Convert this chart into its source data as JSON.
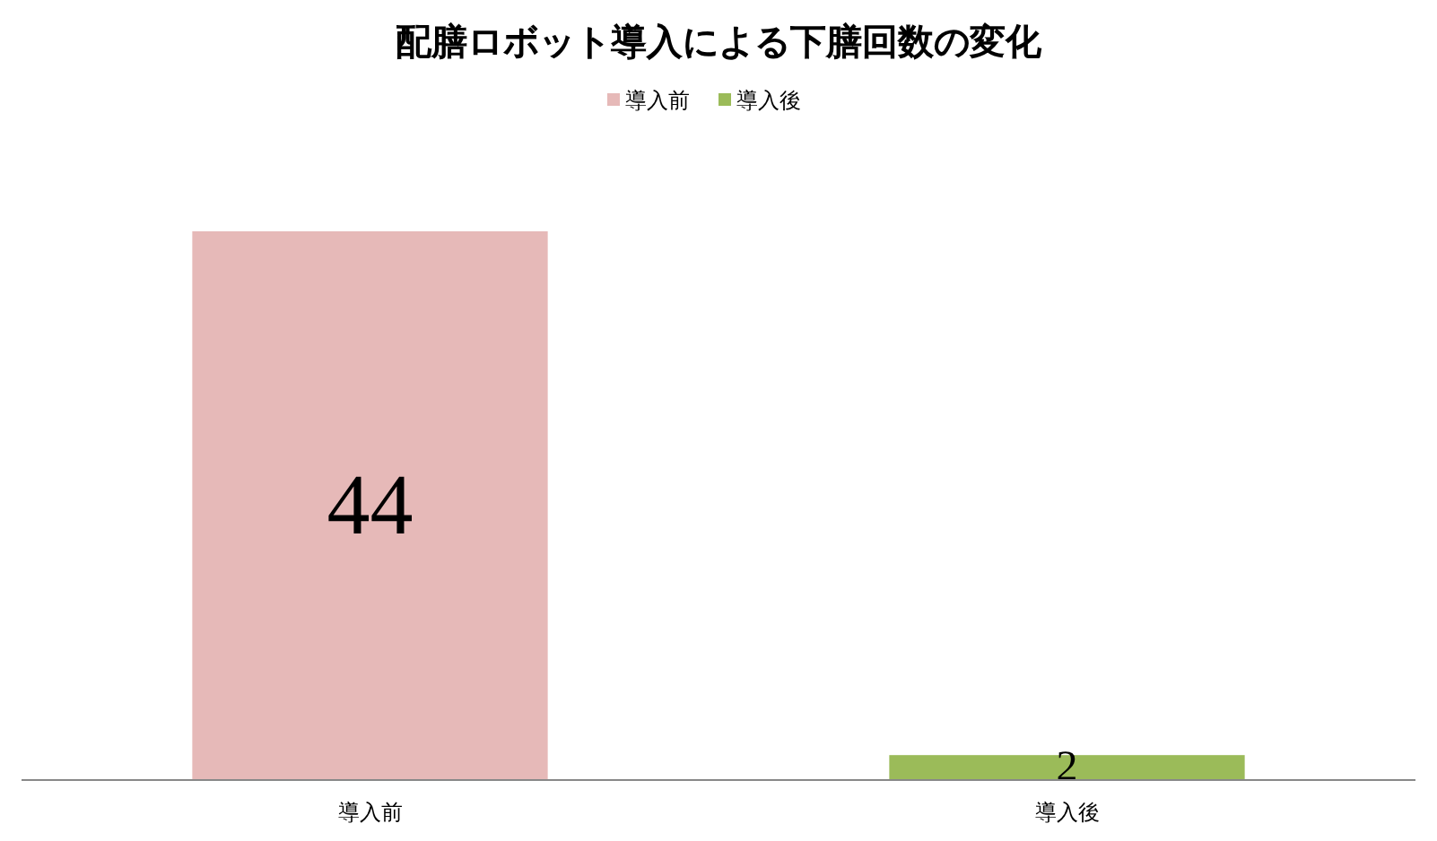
{
  "chart_data": {
    "type": "bar",
    "title": "配膳ロボット導入による下膳回数の変化",
    "categories": [
      "導入前",
      "導入後"
    ],
    "series": [
      {
        "name": "導入前",
        "color": "#e6b9b8",
        "values": [
          44,
          null
        ]
      },
      {
        "name": "導入後",
        "color": "#9bbb59",
        "values": [
          null,
          2
        ]
      }
    ],
    "stacked": true,
    "data_labels": true,
    "legend": "top"
  }
}
